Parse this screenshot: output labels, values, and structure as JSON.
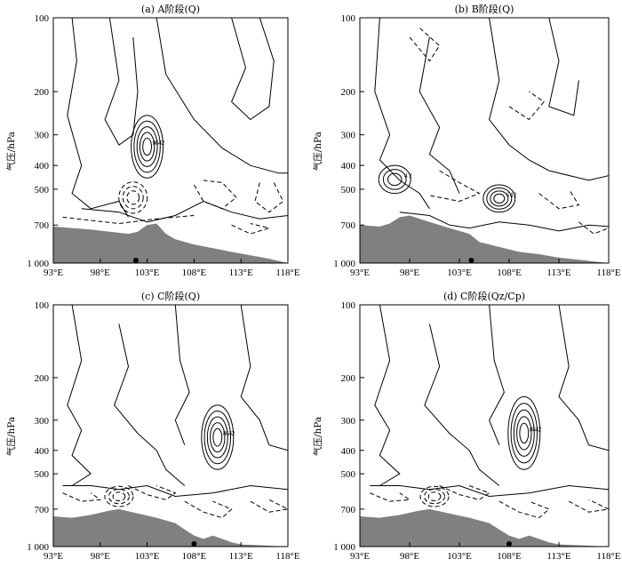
{
  "chart_data": [
    {
      "type": "contour",
      "title": "(a) A阶段(Q)",
      "ylabel": "气压/hPa",
      "xlabel": "",
      "xlim": [
        93,
        118
      ],
      "ylim": [
        1000,
        100
      ],
      "yscale": "log",
      "x_ticks": [
        "93°E",
        "98°E",
        "103°E",
        "108°E",
        "113°E",
        "118°E"
      ],
      "y_ticks": [
        "100",
        "200",
        "300",
        "400",
        "500",
        "700",
        "1 000"
      ],
      "station_lon": 101.8,
      "terrain": [
        [
          93,
          710
        ],
        [
          95,
          720
        ],
        [
          97,
          730
        ],
        [
          99,
          745
        ],
        [
          101,
          760
        ],
        [
          102,
          745
        ],
        [
          103,
          700
        ],
        [
          104,
          690
        ],
        [
          105,
          760
        ],
        [
          106,
          800
        ],
        [
          108,
          840
        ],
        [
          110,
          870
        ],
        [
          112,
          900
        ],
        [
          114,
          930
        ],
        [
          116,
          960
        ],
        [
          117,
          980
        ],
        [
          118,
          1000
        ]
      ],
      "features": [
        {
          "kind": "heating-center",
          "lon": 103.0,
          "pressure_range": [
            250,
            450
          ],
          "levels": [
            "2",
            "4",
            "6",
            "8"
          ]
        },
        {
          "kind": "cooling",
          "lon": 101.5,
          "pressure_range": [
            450,
            650
          ]
        }
      ]
    },
    {
      "type": "contour",
      "title": "(b) B阶段(Q)",
      "ylabel": "气压/hPa",
      "xlabel": "",
      "xlim": [
        93,
        118
      ],
      "ylim": [
        1000,
        100
      ],
      "yscale": "log",
      "x_ticks": [
        "93°E",
        "98°E",
        "103°E",
        "108°E",
        "113°E",
        "118°E"
      ],
      "y_ticks": [
        "100",
        "200",
        "300",
        "400",
        "500",
        "700",
        "1 000"
      ],
      "station_lon": 104.2,
      "terrain": [
        [
          93,
          700
        ],
        [
          95,
          710
        ],
        [
          96,
          690
        ],
        [
          97,
          650
        ],
        [
          98,
          640
        ],
        [
          100,
          680
        ],
        [
          102,
          720
        ],
        [
          104,
          760
        ],
        [
          105,
          820
        ],
        [
          107,
          860
        ],
        [
          109,
          900
        ],
        [
          111,
          920
        ],
        [
          113,
          950
        ],
        [
          115,
          970
        ],
        [
          118,
          1000
        ]
      ],
      "features": [
        {
          "kind": "heating-center",
          "lon": 96.5,
          "pressure_range": [
            400,
            520
          ],
          "levels": [
            "2",
            "4"
          ]
        },
        {
          "kind": "heating-center",
          "lon": 107.0,
          "pressure_range": [
            480,
            620
          ],
          "levels": [
            "2",
            "4",
            "6"
          ]
        }
      ]
    },
    {
      "type": "contour",
      "title": "(c) C阶段(Q)",
      "ylabel": "气压/hPa",
      "xlabel": "",
      "xlim": [
        93,
        118
      ],
      "ylim": [
        1000,
        100
      ],
      "yscale": "log",
      "x_ticks": [
        "93°E",
        "98°E",
        "103°E",
        "108°E",
        "113°E",
        "118°E"
      ],
      "y_ticks": [
        "100",
        "200",
        "300",
        "400",
        "500",
        "700",
        "1 000"
      ],
      "station_lon": 108.0,
      "terrain": [
        [
          93,
          750
        ],
        [
          95,
          760
        ],
        [
          97,
          740
        ],
        [
          99,
          710
        ],
        [
          100,
          700
        ],
        [
          102,
          730
        ],
        [
          104,
          760
        ],
        [
          106,
          800
        ],
        [
          107,
          850
        ],
        [
          108,
          900
        ],
        [
          109,
          930
        ],
        [
          110,
          900
        ],
        [
          111,
          930
        ],
        [
          112,
          960
        ],
        [
          113,
          980
        ],
        [
          118,
          1000
        ]
      ],
      "features": [
        {
          "kind": "heating-center",
          "lon": 110.5,
          "pressure_range": [
            260,
            480
          ],
          "levels": [
            "2",
            "4",
            "6",
            "8"
          ]
        },
        {
          "kind": "cooling",
          "lon": 100.0,
          "pressure_range": [
            550,
            700
          ]
        }
      ]
    },
    {
      "type": "contour",
      "title": "(d) C阶段(Qz/Cp)",
      "ylabel": "气压/hPa",
      "xlabel": "",
      "xlim": [
        93,
        118
      ],
      "ylim": [
        1000,
        100
      ],
      "yscale": "log",
      "x_ticks": [
        "93°E",
        "98°E",
        "103°E",
        "108°E",
        "113°E",
        "118°E"
      ],
      "y_ticks": [
        "100",
        "200",
        "300",
        "400",
        "500",
        "700",
        "1 000"
      ],
      "station_lon": 108.0,
      "terrain": [
        [
          93,
          750
        ],
        [
          95,
          760
        ],
        [
          97,
          740
        ],
        [
          99,
          710
        ],
        [
          100,
          700
        ],
        [
          102,
          730
        ],
        [
          104,
          760
        ],
        [
          106,
          800
        ],
        [
          107,
          850
        ],
        [
          108,
          900
        ],
        [
          109,
          930
        ],
        [
          110,
          900
        ],
        [
          111,
          930
        ],
        [
          112,
          960
        ],
        [
          113,
          980
        ],
        [
          118,
          1000
        ]
      ],
      "features": [
        {
          "kind": "heating-center",
          "lon": 109.5,
          "pressure_range": [
            240,
            480
          ],
          "levels": [
            "2",
            "4",
            "6",
            "8"
          ]
        },
        {
          "kind": "cooling",
          "lon": 100.5,
          "pressure_range": [
            550,
            700
          ]
        }
      ]
    }
  ],
  "colors": {
    "terrain": "#808080",
    "line": "#000000"
  }
}
